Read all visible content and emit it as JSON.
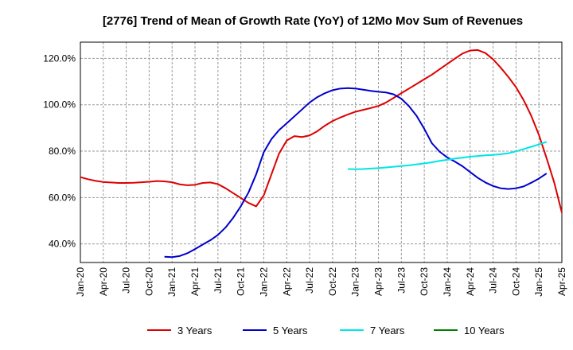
{
  "chart_data": {
    "type": "line",
    "title": "[2776]  Trend of Mean of Growth Rate (YoY) of 12Mo Mov Sum of Revenues",
    "xlabel": "",
    "ylabel": "",
    "ylim": [
      32,
      127
    ],
    "xlim": [
      "2020-01",
      "2025-04"
    ],
    "grid": true,
    "legend_position": "bottom",
    "y_ticks": [
      {
        "value": 40,
        "label": "40.0%"
      },
      {
        "value": 60,
        "label": "60.0%"
      },
      {
        "value": 80,
        "label": "80.0%"
      },
      {
        "value": 100,
        "label": "100.0%"
      },
      {
        "value": 120,
        "label": "120.0%"
      }
    ],
    "x_ticks": [
      "Jan-20",
      "Apr-20",
      "Jul-20",
      "Oct-20",
      "Jan-21",
      "Apr-21",
      "Jul-21",
      "Oct-21",
      "Jan-22",
      "Apr-22",
      "Jul-22",
      "Oct-22",
      "Jan-23",
      "Apr-23",
      "Jul-23",
      "Oct-23",
      "Jan-24",
      "Apr-24",
      "Jul-24",
      "Oct-24",
      "Jan-25",
      "Apr-25"
    ],
    "series": [
      {
        "name": "3 Years",
        "color": "#dd0000",
        "start": "2020-01",
        "values": [
          68.8,
          67.9,
          67.2,
          66.7,
          66.5,
          66.3,
          66.3,
          66.4,
          66.6,
          66.8,
          67.1,
          67.0,
          66.6,
          65.7,
          65.3,
          65.5,
          66.3,
          66.5,
          65.8,
          64.0,
          61.9,
          59.8,
          57.7,
          56.2,
          61.0,
          70.0,
          79.0,
          84.6,
          86.5,
          86.1,
          86.8,
          88.6,
          91.0,
          93.0,
          94.5,
          95.8,
          97.0,
          97.8,
          98.6,
          99.5,
          101.0,
          103.0,
          105.0,
          107.0,
          109.0,
          111.0,
          113.0,
          115.3,
          117.6,
          119.9,
          122.1,
          123.4,
          123.6,
          122.3,
          119.6,
          116.0,
          112.0,
          107.6,
          102.0,
          95.2,
          87.0,
          77.0,
          66.5,
          53.5
        ]
      },
      {
        "name": "5 Years",
        "color": "#0000cc",
        "start": "2020-12",
        "values": [
          34.5,
          34.3,
          34.8,
          36.0,
          37.8,
          39.7,
          41.6,
          43.9,
          47.1,
          51.3,
          56.3,
          62.2,
          70.0,
          79.6,
          85.2,
          89.1,
          92.0,
          95.0,
          98.0,
          101.0,
          103.3,
          105.0,
          106.3,
          107.0,
          107.2,
          107.0,
          106.5,
          106.0,
          105.6,
          105.3,
          104.5,
          102.6,
          99.4,
          95.2,
          89.6,
          83.4,
          79.8,
          77.3,
          75.5,
          73.5,
          71.0,
          68.5,
          66.5,
          65.0,
          64.0,
          63.7,
          64.0,
          64.8,
          66.4,
          68.2,
          70.4
        ]
      },
      {
        "name": "7 Years",
        "color": "#00e5e5",
        "start": "2022-12",
        "values": [
          72.3,
          72.2,
          72.3,
          72.5,
          72.7,
          73.0,
          73.3,
          73.6,
          73.9,
          74.3,
          74.7,
          75.2,
          75.8,
          76.3,
          76.8,
          77.2,
          77.6,
          77.9,
          78.2,
          78.4,
          78.7,
          79.1,
          79.9,
          80.9,
          81.9,
          82.9,
          84.0
        ]
      },
      {
        "name": "10 Years",
        "color": "#008000",
        "start": "2025-01",
        "values": []
      }
    ]
  }
}
